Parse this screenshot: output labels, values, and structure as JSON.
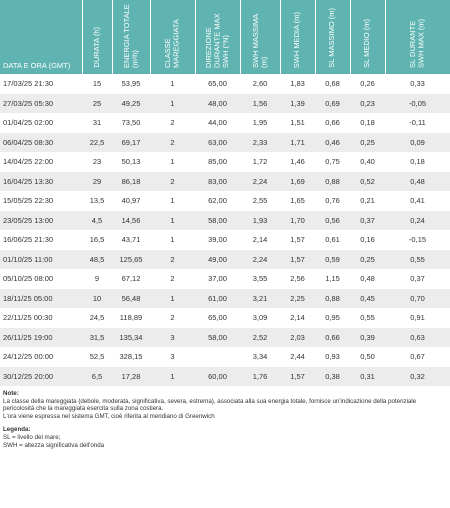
{
  "table": {
    "columns": [
      "DATA E ORA (GMT)",
      "DURATA (h)",
      "ENERGIA TOTALE (m²h)",
      "CLASSE MAREGGIATA",
      "DIREZIONE DURANTE MAX SWH (°N)",
      "SWH MASSIMA (m)",
      "SWH MEDIA (m)",
      "SL MASSIMO (m)",
      "SL MEDIO (m)",
      "SL DURANTE SWH MAX (m)"
    ],
    "rows": [
      [
        "17/03/25 21:30",
        "15",
        "53,95",
        "1",
        "65,00",
        "2,60",
        "1,83",
        "0,68",
        "0,26",
        "0,33"
      ],
      [
        "27/03/25 05:30",
        "25",
        "49,25",
        "1",
        "48,00",
        "1,56",
        "1,39",
        "0,69",
        "0,23",
        "-0,05"
      ],
      [
        "01/04/25 02:00",
        "31",
        "73,50",
        "2",
        "44,00",
        "1,95",
        "1,51",
        "0,66",
        "0,18",
        "-0,11"
      ],
      [
        "06/04/25 08:30",
        "22,5",
        "69,17",
        "2",
        "63,00",
        "2,33",
        "1,71",
        "0,46",
        "0,25",
        "0,09"
      ],
      [
        "14/04/25 22:00",
        "23",
        "50,13",
        "1",
        "85,00",
        "1,72",
        "1,46",
        "0,75",
        "0,40",
        "0,18"
      ],
      [
        "16/04/25 13:30",
        "29",
        "86,18",
        "2",
        "83,00",
        "2,24",
        "1,69",
        "0,88",
        "0,52",
        "0,48"
      ],
      [
        "15/05/25 22:30",
        "13,5",
        "40,97",
        "1",
        "62,00",
        "2,55",
        "1,65",
        "0,76",
        "0,21",
        "0,41"
      ],
      [
        "23/05/25 13:00",
        "4,5",
        "14,56",
        "1",
        "58,00",
        "1,93",
        "1,70",
        "0,56",
        "0,37",
        "0,24"
      ],
      [
        "16/06/25 21:30",
        "16,5",
        "43,71",
        "1",
        "39,00",
        "2,14",
        "1,57",
        "0,61",
        "0,16",
        "-0,15"
      ],
      [
        "01/10/25 11:00",
        "48,5",
        "125,65",
        "2",
        "49,00",
        "2,24",
        "1,57",
        "0,59",
        "0,25",
        "0,55"
      ],
      [
        "05/10/25 08:00",
        "9",
        "67,12",
        "2",
        "37,00",
        "3,55",
        "2,56",
        "1,15",
        "0,48",
        "0,37"
      ],
      [
        "18/11/25 05:00",
        "10",
        "56,48",
        "1",
        "61,00",
        "3,21",
        "2,25",
        "0,88",
        "0,45",
        "0,70"
      ],
      [
        "22/11/25 00:30",
        "24,5",
        "118,89",
        "2",
        "65,00",
        "3,09",
        "2,14",
        "0,95",
        "0,55",
        "0,91"
      ],
      [
        "26/11/25 19:00",
        "31,5",
        "135,34",
        "3",
        "58,00",
        "2,52",
        "2,03",
        "0,66",
        "0,39",
        "0,63"
      ],
      [
        "24/12/25 00:00",
        "52,5",
        "328,15",
        "3",
        null,
        "3,34",
        "2,44",
        "0,93",
        "0,50",
        "0,67"
      ],
      [
        "30/12/25 20:00",
        "6,5",
        "17,28",
        "1",
        "60,00",
        "1,76",
        "1,57",
        "0,38",
        "0,31",
        "0,32"
      ]
    ]
  },
  "notes": {
    "title": "Note:",
    "lines": [
      "La classe della mareggiata (debole, moderata, significativa, severa, estrema), associata alla sua energia totale, fornisce un'indicazione della potenziale pericolosità che la mareggiata esercita sulla zona costiera.",
      "L'ora viene espressa nel sistema GMT, cioè riferita al meridiano di Greenwich"
    ]
  },
  "legend": {
    "title": "Legenda:",
    "lines": [
      "SL = livello del mare;",
      "SWH = altezza significativa dell'onda"
    ]
  }
}
